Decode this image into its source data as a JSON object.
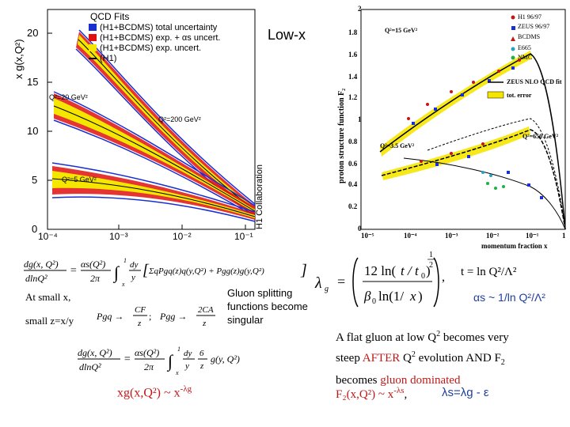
{
  "slide_title": "Low-x",
  "left_plot": {
    "ylabel": "x g(x,Q²)",
    "legend_title": "QCD Fits",
    "legend": [
      {
        "label": "(H1+BCDMS) total uncertainty",
        "color": "#1a2fd0"
      },
      {
        "label": "(H1+BCDMS) exp. + αs uncert.",
        "color": "#e01010"
      },
      {
        "label": "(H1+BCDMS) exp. uncert.",
        "color": "#f5e600"
      },
      {
        "label": "(H1)",
        "color": "#000000"
      }
    ],
    "yticks": [
      "20",
      "15",
      "10",
      "5",
      "0"
    ],
    "xticks": [
      "10⁻⁴",
      "10⁻³",
      "10⁻²",
      "10⁻¹"
    ],
    "curve_labels": [
      "Q²=20 GeV²",
      "Q²=200 GeV²",
      "Q²=5 GeV²"
    ],
    "collab": "H1 Collaboration"
  },
  "right_plot": {
    "ylabel": "proton structure function F₂",
    "xlabel": "momentum fraction x",
    "yticks": [
      "2",
      "1.8",
      "1.6",
      "1.4",
      "1.2",
      "1",
      "0.8",
      "0.6",
      "0.4",
      "0.2",
      "0"
    ],
    "xticks": [
      "10⁻⁵",
      "10⁻⁴",
      "10⁻³",
      "10⁻²",
      "10⁻¹",
      "1"
    ],
    "legend": [
      "H1 96/97",
      "ZEUS 96/97",
      "BCDMS",
      "E665",
      "NMC"
    ],
    "fit_label": "ZEUS NLO QCD fit",
    "err_label": "tot. error",
    "curve_labels": [
      "Q²=15 GeV²",
      "Q²=650 GeV²",
      "Q²=3.5 GeV²"
    ]
  },
  "text": {
    "at_small_x": "At small x,",
    "small_z": "small z=x/y",
    "gluon_splitting": "Gluon splitting functions become singular",
    "t_def": "t = ln Q²/Λ²",
    "alpha_s": "αs ~ 1/ln Q²/Λ²",
    "comma": ",",
    "flat_gluon_1": "A flat gluon at low Q",
    "flat_gluon_sup1": "2",
    "flat_gluon_2": " becomes very",
    "steep_1": "steep ",
    "steep_after": "AFTER",
    "steep_2": " Q",
    "steep_sup": "2",
    "steep_3": " evolution AND F",
    "steep_sub": "2",
    "becomes_1": "becomes ",
    "becomes_gluon": "gluon dominated",
    "xg_formula": "xg(x,Q²) ~ x",
    "xg_exp": "-λg",
    "f2_formula": "F₂(x,Q²) ~ x",
    "f2_exp": "-λs",
    "f2_comma": ",",
    "lambda_rel": "λs=λg - ε"
  },
  "equations": {
    "dglap_g": "dg(x,Q²)/dlnQ² = αs(Q²)/2π ∫ₓ¹ dy/y [Σq Pgq(z)q(y,Q²) + Pgg(z)g(y,Q²)]",
    "pgq": "Pgq → CF/z",
    "pgg": "Pgg → 2CA/z",
    "dglap_small": "dg(x,Q²)/dlnQ² = αs(Q²)/2π ∫ₓ¹ dy/y 6/z g(y,Q²)",
    "lambda_g": "λg = [12 ln(t/t₀) / β₀ ln(1/x)]^(1/2)"
  }
}
